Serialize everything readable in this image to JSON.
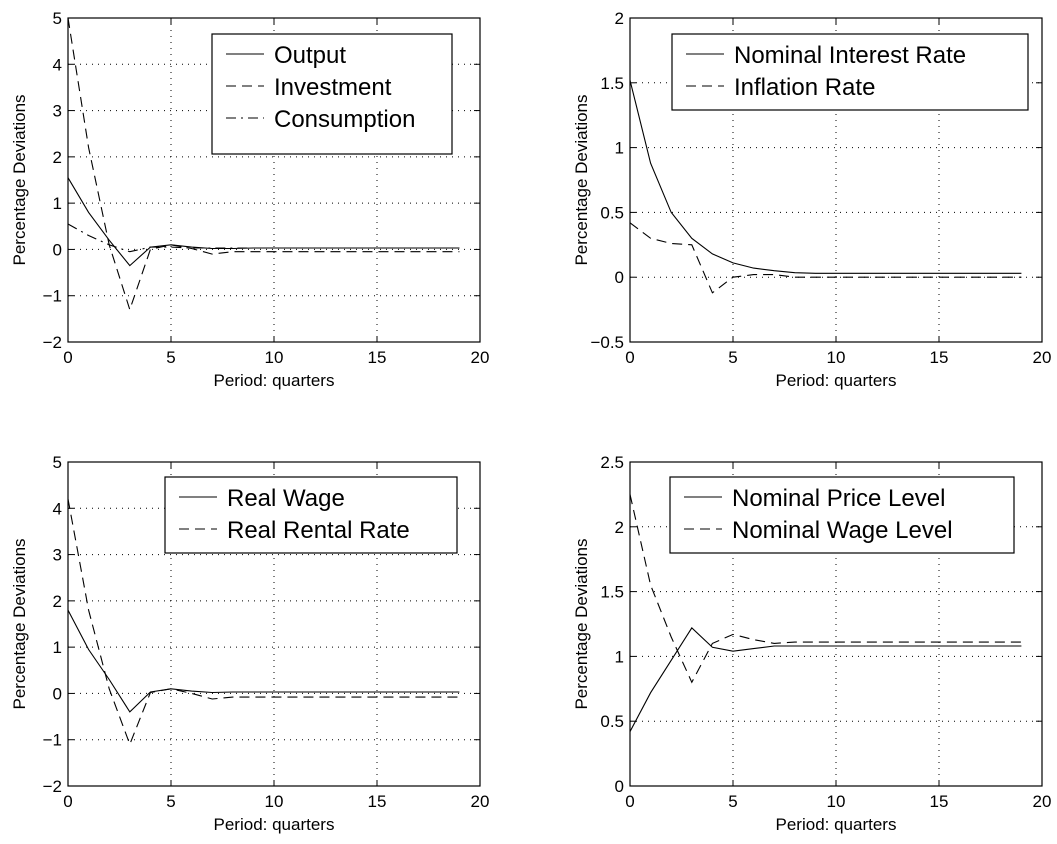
{
  "chart_data": [
    {
      "type": "line",
      "xlabel": "Period: quarters",
      "ylabel": "Percentage Deviations",
      "xlim": [
        0,
        20
      ],
      "ylim": [
        -2,
        5
      ],
      "xticks": [
        "0",
        "5",
        "10",
        "15",
        "20"
      ],
      "yticks": [
        "−2",
        "−1",
        "0",
        "1",
        "2",
        "3",
        "4",
        "5"
      ],
      "grid": true,
      "legend_position": "top-right",
      "x": [
        0,
        1,
        2,
        3,
        4,
        5,
        6,
        7,
        8,
        9,
        10,
        11,
        12,
        13,
        14,
        15,
        16,
        17,
        18,
        19
      ],
      "series": [
        {
          "name": "Output",
          "style": "solid",
          "values": [
            1.55,
            0.8,
            0.2,
            -0.35,
            0.05,
            0.1,
            0.05,
            0.02,
            0.02,
            0.03,
            0.03,
            0.03,
            0.03,
            0.03,
            0.03,
            0.03,
            0.03,
            0.03,
            0.03,
            0.03
          ]
        },
        {
          "name": "Investment",
          "style": "dashed",
          "values": [
            5.0,
            2.2,
            0.1,
            -1.3,
            0.0,
            0.1,
            0.02,
            -0.1,
            -0.05,
            -0.05,
            -0.05,
            -0.05,
            -0.05,
            -0.05,
            -0.05,
            -0.05,
            -0.05,
            -0.05,
            -0.05,
            -0.05
          ]
        },
        {
          "name": "Consumption",
          "style": "dashdot",
          "values": [
            0.55,
            0.3,
            0.1,
            -0.05,
            0.05,
            0.05,
            0.03,
            0.03,
            0.03,
            0.03,
            0.03,
            0.03,
            0.03,
            0.03,
            0.03,
            0.03,
            0.03,
            0.03,
            0.03,
            0.03
          ]
        }
      ]
    },
    {
      "type": "line",
      "xlabel": "Period: quarters",
      "ylabel": "Percentage Deviations",
      "xlim": [
        0,
        20
      ],
      "ylim": [
        -0.5,
        2
      ],
      "xticks": [
        "0",
        "5",
        "10",
        "15",
        "20"
      ],
      "yticks": [
        "−0.5",
        "0",
        "0.5",
        "1",
        "1.5",
        "2"
      ],
      "grid": true,
      "legend_position": "top-right",
      "x": [
        0,
        1,
        2,
        3,
        4,
        5,
        6,
        7,
        8,
        9,
        10,
        11,
        12,
        13,
        14,
        15,
        16,
        17,
        18,
        19
      ],
      "series": [
        {
          "name": "Nominal Interest Rate",
          "style": "solid",
          "values": [
            1.52,
            0.88,
            0.5,
            0.3,
            0.18,
            0.11,
            0.07,
            0.05,
            0.035,
            0.03,
            0.03,
            0.03,
            0.03,
            0.03,
            0.03,
            0.03,
            0.03,
            0.03,
            0.03,
            0.03
          ]
        },
        {
          "name": "Inflation Rate",
          "style": "dashed",
          "values": [
            0.42,
            0.3,
            0.26,
            0.25,
            -0.12,
            0.0,
            0.02,
            0.02,
            0.0,
            0.0,
            0.0,
            0.0,
            0.0,
            0.0,
            0.0,
            0.0,
            0.0,
            0.0,
            0.0,
            0.0
          ]
        }
      ]
    },
    {
      "type": "line",
      "xlabel": "Period: quarters",
      "ylabel": "Percentage Deviations",
      "xlim": [
        0,
        20
      ],
      "ylim": [
        -2,
        5
      ],
      "xticks": [
        "0",
        "5",
        "10",
        "15",
        "20"
      ],
      "yticks": [
        "−2",
        "−1",
        "0",
        "1",
        "2",
        "3",
        "4",
        "5"
      ],
      "grid": true,
      "legend_position": "top-right",
      "x": [
        0,
        1,
        2,
        3,
        4,
        5,
        6,
        7,
        8,
        9,
        10,
        11,
        12,
        13,
        14,
        15,
        16,
        17,
        18,
        19
      ],
      "series": [
        {
          "name": "Real Wage",
          "style": "solid",
          "values": [
            1.8,
            0.95,
            0.3,
            -0.4,
            0.03,
            0.1,
            0.05,
            0.02,
            0.03,
            0.03,
            0.03,
            0.03,
            0.03,
            0.03,
            0.03,
            0.03,
            0.03,
            0.03,
            0.03,
            0.03
          ]
        },
        {
          "name": "Real Rental Rate",
          "style": "dashed",
          "values": [
            4.2,
            1.8,
            0.1,
            -1.1,
            0.02,
            0.1,
            0.0,
            -0.12,
            -0.08,
            -0.08,
            -0.08,
            -0.08,
            -0.08,
            -0.08,
            -0.08,
            -0.08,
            -0.08,
            -0.08,
            -0.08,
            -0.08
          ]
        }
      ]
    },
    {
      "type": "line",
      "xlabel": "Period: quarters",
      "ylabel": "Percentage Deviations",
      "xlim": [
        0,
        20
      ],
      "ylim": [
        0,
        2.5
      ],
      "xticks": [
        "0",
        "5",
        "10",
        "15",
        "20"
      ],
      "yticks": [
        "0",
        "0.5",
        "1",
        "1.5",
        "2",
        "2.5"
      ],
      "grid": true,
      "legend_position": "top-right",
      "x": [
        0,
        1,
        2,
        3,
        4,
        5,
        6,
        7,
        8,
        9,
        10,
        11,
        12,
        13,
        14,
        15,
        16,
        17,
        18,
        19
      ],
      "series": [
        {
          "name": "Nominal Price Level",
          "style": "solid",
          "values": [
            0.42,
            0.72,
            0.97,
            1.22,
            1.07,
            1.04,
            1.06,
            1.08,
            1.08,
            1.08,
            1.08,
            1.08,
            1.08,
            1.08,
            1.08,
            1.08,
            1.08,
            1.08,
            1.08,
            1.08
          ]
        },
        {
          "name": "Nominal Wage Level",
          "style": "dashed",
          "values": [
            2.25,
            1.55,
            1.15,
            0.8,
            1.1,
            1.17,
            1.13,
            1.1,
            1.11,
            1.11,
            1.11,
            1.11,
            1.11,
            1.11,
            1.11,
            1.11,
            1.11,
            1.11,
            1.11,
            1.11
          ]
        }
      ]
    }
  ]
}
